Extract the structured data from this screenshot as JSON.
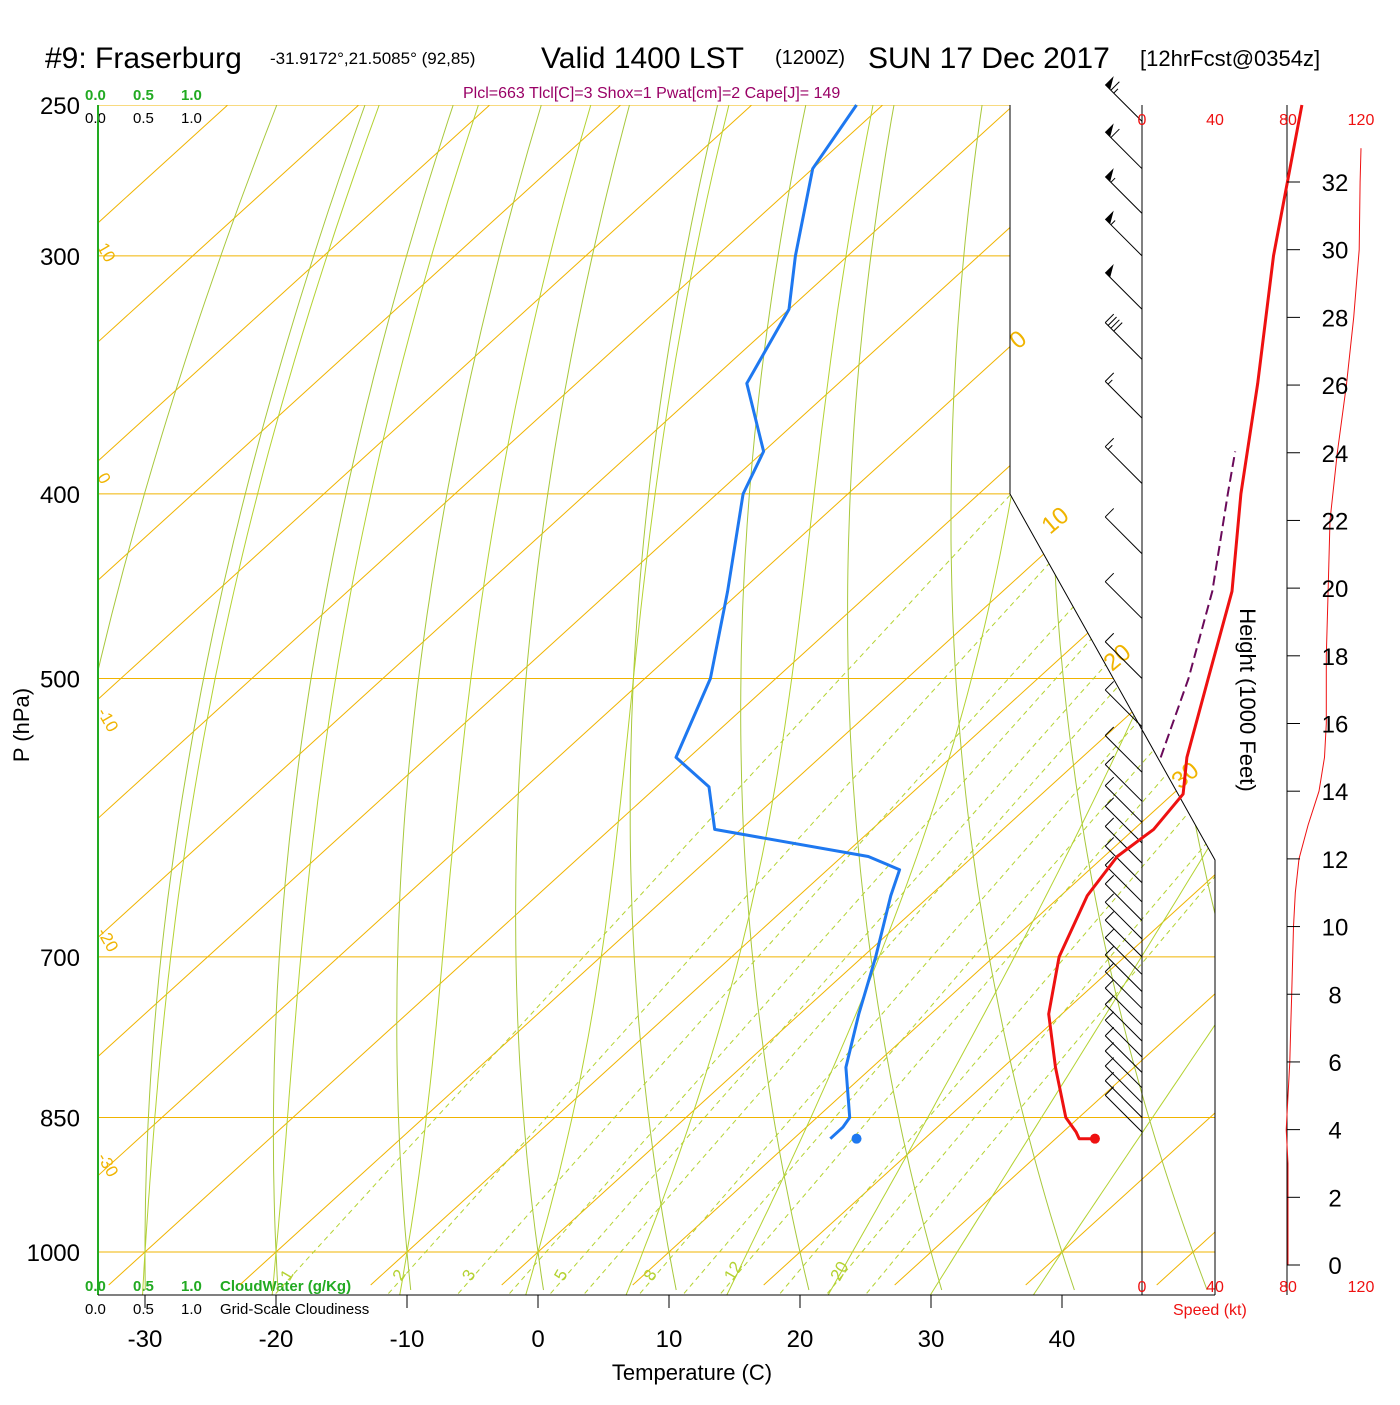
{
  "header": {
    "station": "#9: Fraserburg",
    "coords": "-31.9172°,21.5085° (92,85)",
    "valid_main": "Valid 1400 LST",
    "valid_utc": "(1200Z)",
    "valid_date": "SUN 17 Dec 2017",
    "forecast": "[12hrFcst@0354z]",
    "indices": "Plcl=663 Tlcl[C]=3 Shox=1 Pwat[cm]=2 Cape[J]= 149"
  },
  "colors": {
    "isotherm": "#f0b400",
    "dry_adiabat": "#a8c83c",
    "moist_adiabat": "#b4d232",
    "temperature": "#ee1111",
    "dewpoint": "#1e78f0",
    "parcel": "#6a0a5a",
    "cloud_scale": "#22aa22",
    "speed": "#ee1111",
    "title_indices": "#990066"
  },
  "scales": {
    "cloudwater_ticks": [
      "0.0",
      "0.5",
      "1.0"
    ],
    "cloudwater_label": "CloudWater (g/Kg)",
    "cloudiness_ticks": [
      "0.0",
      "0.5",
      "1.0"
    ],
    "cloudiness_label": "Grid-Scale Cloudiness",
    "speed_ticks": [
      "0",
      "40",
      "80",
      "120"
    ],
    "speed_label": "Speed (kt)"
  },
  "chart_data": {
    "type": "skew-t",
    "xlabel": "Temperature (C)",
    "ylabel": "P (hPa)",
    "y2label": "Height (1000 Feet)",
    "x_ticks": [
      -30,
      -20,
      -10,
      0,
      10,
      20,
      30,
      40
    ],
    "pressure_ticks": [
      1000,
      850,
      700,
      500,
      400,
      300,
      250
    ],
    "height_ticks": [
      0,
      2,
      4,
      6,
      8,
      10,
      12,
      14,
      16,
      18,
      20,
      22,
      24,
      26,
      28,
      30,
      32
    ],
    "isotherm_labels": [
      "10",
      "0",
      "-10",
      "-20",
      "-30"
    ],
    "adiabat_labels": [
      "0",
      "10",
      "20",
      "30"
    ],
    "mixing_ratio_labels": [
      "1",
      "2",
      "3",
      "5",
      "8",
      "12",
      "20"
    ],
    "temperature": {
      "name": "Temperature",
      "points": [
        [
          872,
          33.0
        ],
        [
          872,
          31.8
        ],
        [
          865,
          31.0
        ],
        [
          850,
          29.0
        ],
        [
          800,
          24.0
        ],
        [
          750,
          19.0
        ],
        [
          700,
          15.0
        ],
        [
          650,
          12.0
        ],
        [
          620,
          11.0
        ],
        [
          600,
          11.5
        ],
        [
          575,
          10.8
        ],
        [
          550,
          8.0
        ],
        [
          500,
          3.0
        ],
        [
          450,
          -2.5
        ],
        [
          400,
          -10.0
        ],
        [
          350,
          -18.0
        ],
        [
          300,
          -27.5
        ],
        [
          250,
          -38.0
        ]
      ]
    },
    "dewpoint": {
      "name": "Dewpoint",
      "points": [
        [
          872,
          12.8
        ],
        [
          860,
          12.8
        ],
        [
          850,
          12.5
        ],
        [
          800,
          8.0
        ],
        [
          750,
          4.5
        ],
        [
          700,
          1.0
        ],
        [
          650,
          -3.0
        ],
        [
          630,
          -4.5
        ],
        [
          620,
          -8.0
        ],
        [
          600,
          -22.0
        ],
        [
          570,
          -26.0
        ],
        [
          550,
          -31.0
        ],
        [
          500,
          -35.0
        ],
        [
          450,
          -41.0
        ],
        [
          400,
          -48.0
        ],
        [
          380,
          -50.0
        ],
        [
          350,
          -57.0
        ],
        [
          320,
          -60.0
        ],
        [
          300,
          -64.0
        ],
        [
          270,
          -70.0
        ],
        [
          250,
          -72.0
        ]
      ]
    },
    "parcel": {
      "name": "Parcel",
      "points": [
        [
          550,
          6.0
        ],
        [
          500,
          1.5
        ],
        [
          450,
          -4.0
        ],
        [
          400,
          -11.0
        ],
        [
          380,
          -14.0
        ]
      ]
    },
    "surface_temperature": 33.0,
    "surface_dewpoint": 14.8,
    "surface_pressure": 872,
    "speed_profile": [
      [
        0,
        80
      ],
      [
        1,
        80
      ],
      [
        2,
        80
      ],
      [
        3,
        80
      ],
      [
        4,
        79
      ],
      [
        5,
        80
      ],
      [
        6,
        81
      ],
      [
        7,
        81.5
      ],
      [
        8,
        82
      ],
      [
        10,
        83
      ],
      [
        11,
        84
      ],
      [
        12,
        86
      ],
      [
        13,
        91
      ],
      [
        14,
        97
      ],
      [
        15,
        100
      ],
      [
        16,
        101
      ],
      [
        18,
        101
      ],
      [
        20,
        102
      ],
      [
        22,
        103
      ],
      [
        24,
        107
      ],
      [
        26,
        112
      ],
      [
        28,
        116
      ],
      [
        30,
        119
      ],
      [
        32,
        119.5
      ],
      [
        33,
        120
      ]
    ],
    "wind_barbs": [
      {
        "p": 255,
        "spd": 65
      },
      {
        "p": 270,
        "spd": 60
      },
      {
        "p": 285,
        "spd": 55
      },
      {
        "p": 300,
        "spd": 55
      },
      {
        "p": 320,
        "spd": 50
      },
      {
        "p": 340,
        "spd": 40
      },
      {
        "p": 365,
        "spd": 15
      },
      {
        "p": 395,
        "spd": 15
      },
      {
        "p": 430,
        "spd": 10
      },
      {
        "p": 465,
        "spd": 10
      },
      {
        "p": 500,
        "spd": 10
      },
      {
        "p": 530,
        "spd": 10
      },
      {
        "p": 560,
        "spd": 10
      },
      {
        "p": 580,
        "spd": 10
      },
      {
        "p": 595,
        "spd": 10
      },
      {
        "p": 610,
        "spd": 10
      },
      {
        "p": 625,
        "spd": 10
      },
      {
        "p": 640,
        "spd": 10
      },
      {
        "p": 655,
        "spd": 10
      },
      {
        "p": 670,
        "spd": 10
      },
      {
        "p": 685,
        "spd": 10
      },
      {
        "p": 700,
        "spd": 10
      },
      {
        "p": 715,
        "spd": 10
      },
      {
        "p": 730,
        "spd": 10
      },
      {
        "p": 745,
        "spd": 10
      },
      {
        "p": 760,
        "spd": 10
      },
      {
        "p": 775,
        "spd": 10
      },
      {
        "p": 790,
        "spd": 10
      },
      {
        "p": 805,
        "spd": 10
      },
      {
        "p": 820,
        "spd": 10
      },
      {
        "p": 835,
        "spd": 10
      },
      {
        "p": 850,
        "spd": 10
      },
      {
        "p": 865,
        "spd": 10
      }
    ]
  }
}
